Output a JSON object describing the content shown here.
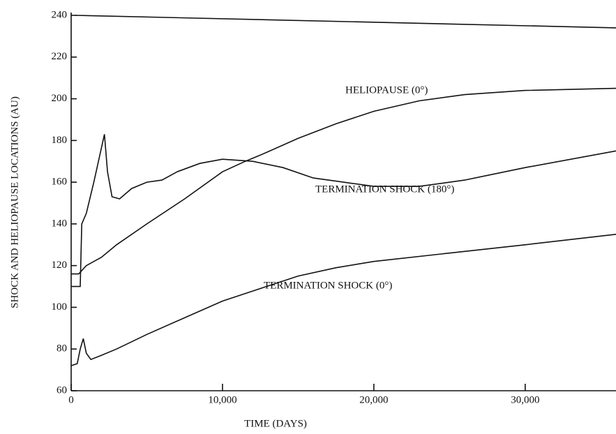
{
  "chart_data": {
    "type": "line",
    "xlabel": "TIME (DAYS)",
    "ylabel": "SHOCK AND HELIOPAUSE LOCATIONS (AU)",
    "xlim": [
      0,
      36000
    ],
    "ylim": [
      60,
      240
    ],
    "xticks": [
      0,
      {
        "value": 10000,
        "label": "10,000"
      },
      {
        "value": 20000,
        "label": "20,000"
      },
      {
        "value": 30000,
        "label": "30,000"
      }
    ],
    "yticks": [
      60,
      80,
      100,
      120,
      140,
      160,
      180,
      200,
      220,
      240
    ],
    "color": "#111111",
    "series": [
      {
        "x": [
          300,
          36000
        ],
        "values": [
          240,
          234
        ]
      },
      {
        "name": "HELIOPAUSE (0°)",
        "x": [
          0,
          500,
          1000,
          2000,
          3000,
          5000,
          7500,
          10000,
          11500,
          12500,
          15000,
          17500,
          20000,
          23000,
          26000,
          30000,
          36000
        ],
        "values": [
          116,
          116,
          120,
          124,
          130,
          140,
          152,
          165,
          170,
          173,
          181,
          188,
          194,
          199,
          202,
          204,
          205
        ]
      },
      {
        "name": "TERMINATION SHOCK (180°)",
        "x": [
          0,
          600,
          700,
          1000,
          1500,
          2200,
          2400,
          2700,
          3200,
          4000,
          5000,
          6000,
          7000,
          8500,
          10000,
          12000,
          14000,
          16000,
          18000,
          20000,
          23000,
          26000,
          30000,
          36000
        ],
        "values": [
          110,
          110,
          140,
          145,
          160,
          183,
          165,
          153,
          152,
          157,
          160,
          161,
          165,
          169,
          171,
          170,
          167,
          162,
          160,
          158,
          158,
          161,
          167,
          175
        ]
      },
      {
        "name": "TERMINATION SHOCK (0°)",
        "x": [
          0,
          400,
          600,
          800,
          1000,
          1300,
          2000,
          3000,
          5000,
          7500,
          10000,
          12500,
          15000,
          17500,
          20000,
          25000,
          30000,
          36000
        ],
        "values": [
          72,
          73,
          80,
          85,
          78,
          75,
          77,
          80,
          87,
          95,
          103,
          109,
          115,
          119,
          122,
          126,
          130,
          135
        ]
      }
    ]
  }
}
